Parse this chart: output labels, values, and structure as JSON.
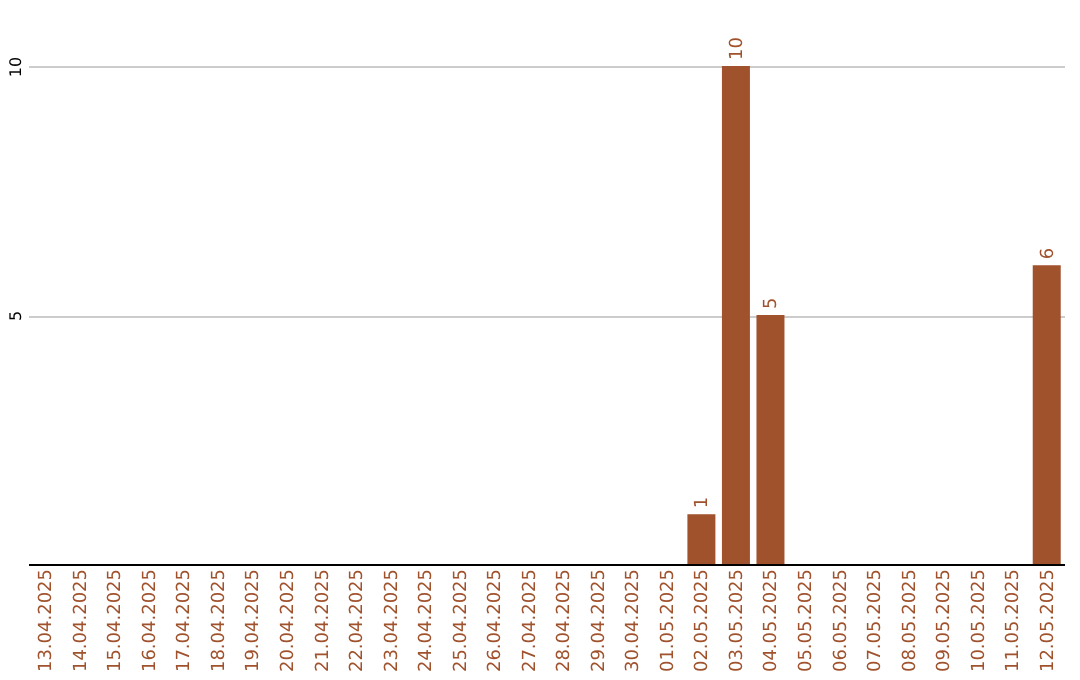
{
  "chart_data": {
    "type": "bar",
    "categories": [
      "13.04.2025",
      "14.04.2025",
      "15.04.2025",
      "16.04.2025",
      "17.04.2025",
      "18.04.2025",
      "19.04.2025",
      "20.04.2025",
      "21.04.2025",
      "22.04.2025",
      "23.04.2025",
      "24.04.2025",
      "25.04.2025",
      "26.04.2025",
      "27.04.2025",
      "28.04.2025",
      "29.04.2025",
      "30.04.2025",
      "01.05.2025",
      "02.05.2025",
      "03.05.2025",
      "04.05.2025",
      "05.05.2025",
      "06.05.2025",
      "07.05.2025",
      "08.05.2025",
      "09.05.2025",
      "10.05.2025",
      "11.05.2025",
      "12.05.2025"
    ],
    "values": [
      0,
      0,
      0,
      0,
      0,
      0,
      0,
      0,
      0,
      0,
      0,
      0,
      0,
      0,
      0,
      0,
      0,
      0,
      0,
      1,
      10,
      5,
      0,
      0,
      0,
      0,
      0,
      0,
      0,
      6
    ],
    "value_labels": [
      null,
      null,
      null,
      null,
      null,
      null,
      null,
      null,
      null,
      null,
      null,
      null,
      null,
      null,
      null,
      null,
      null,
      null,
      null,
      "1",
      "10",
      "5",
      null,
      null,
      null,
      null,
      null,
      null,
      null,
      "6"
    ],
    "color": "#a0522d",
    "ylim": [
      0,
      10
    ],
    "yticks": [
      5,
      10
    ],
    "grid": "y"
  }
}
